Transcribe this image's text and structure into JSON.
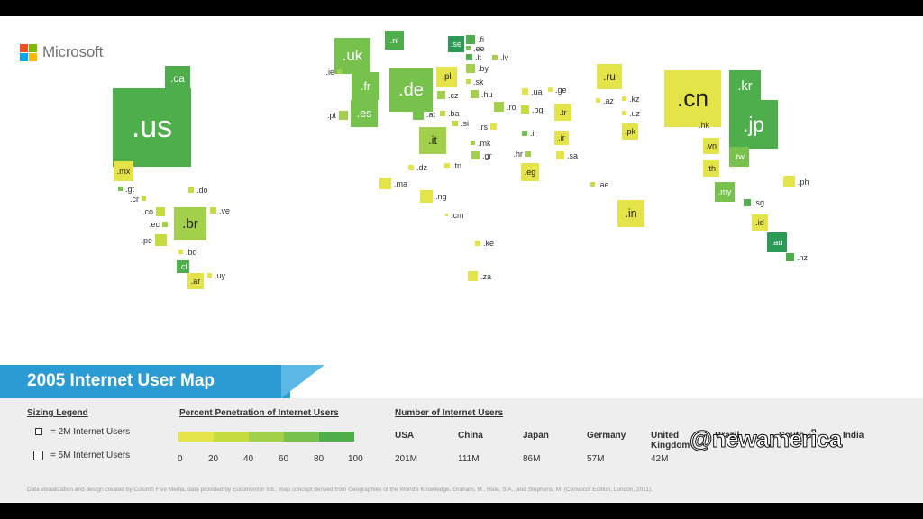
{
  "brand": {
    "name": "Microsoft",
    "logo_colors": [
      "#f25022",
      "#7fba00",
      "#00a4ef",
      "#ffb900"
    ]
  },
  "title": "2005 Internet User Map",
  "sizing_legend": {
    "heading": "Sizing Legend",
    "small": "= 2M Internet Users",
    "large": "= 5M Internet Users"
  },
  "penetration_legend": {
    "heading": "Percent Penetration of Internet Users",
    "colors": [
      "#e4e34a",
      "#c5db3f",
      "#a3d04b",
      "#76c24d",
      "#4fae4c",
      "#2b9a56"
    ],
    "ticks": [
      "0",
      "20",
      "40",
      "60",
      "80",
      "100"
    ]
  },
  "users": {
    "heading": "Number of Internet Users",
    "countries": [
      "USA",
      "China",
      "Japan",
      "Germany",
      "United Kingdom",
      "Brazil",
      "South",
      "India"
    ],
    "values": [
      "201M",
      "111M",
      "86M",
      "57M",
      "42M",
      "",
      "",
      ""
    ]
  },
  "credits": "Data visualization and design created by Column Five Media, data provided by Euromonitor Intl.; map concept derived from Geographies of the World's Knowledge, Graham, M., Hale, S.A., and Stephens, M. (Convoco! Edition, London, 2011).",
  "watermark": "@newamerica",
  "domains": [
    ".us",
    ".ca",
    ".mx",
    ".gt",
    ".cr",
    ".do",
    ".co",
    ".ec",
    ".pe",
    ".br",
    ".ve",
    ".bo",
    ".cl",
    ".ar",
    ".uy",
    ".uk",
    ".ie",
    ".fr",
    ".es",
    ".pt",
    ".nl",
    ".de",
    ".se",
    ".fi",
    ".ee",
    ".lt",
    ".lv",
    ".by",
    ".pl",
    ".sk",
    ".cz",
    ".hu",
    ".at",
    ".ba",
    ".si",
    ".it",
    ".rs",
    ".mk",
    ".gr",
    ".ro",
    ".bg",
    ".ua",
    ".ge",
    ".tr",
    ".il",
    ".ir",
    ".hr",
    ".eg",
    ".sa",
    ".dz",
    ".tn",
    ".ma",
    ".ng",
    ".cm",
    ".ke",
    ".za",
    ".ae",
    ".ru",
    ".az",
    ".kz",
    ".uz",
    ".pk",
    ".in",
    ".cn",
    ".kr",
    ".jp",
    ".hk",
    ".vn",
    ".tw",
    ".th",
    ".my",
    ".ph",
    ".sg",
    ".id",
    ".au",
    ".nz"
  ]
}
